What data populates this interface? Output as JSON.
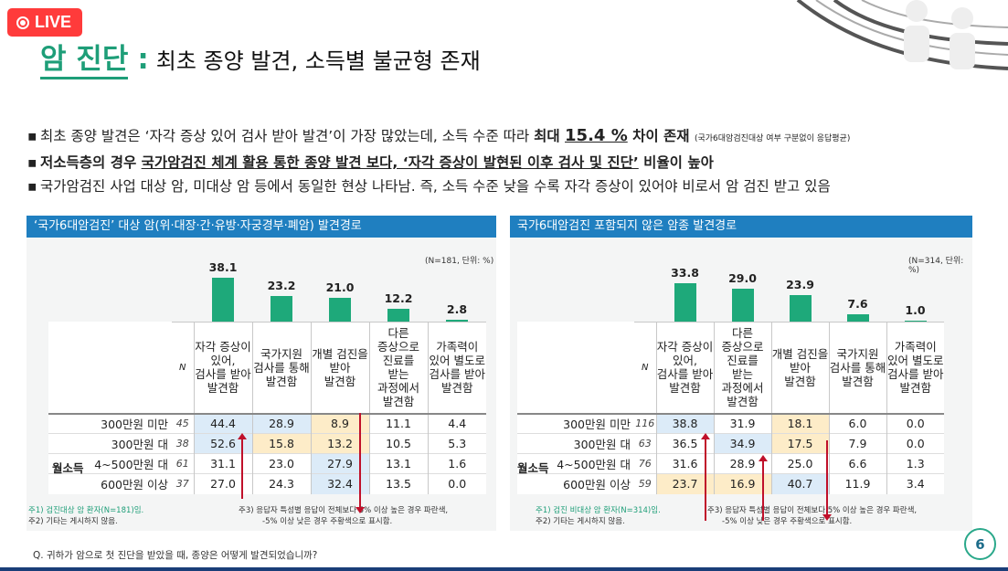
{
  "live_badge": "LIVE",
  "title": {
    "main": "암 진단",
    "colon": ":",
    "sub": "최초 종양 발견, 소득별 불균형 존재"
  },
  "bullets": {
    "b1_pre": "최초 종양 발견은 ‘자각 증상 있어 검사 받아 발견’이 가장 많았는데,  소득 수준 따라 ",
    "b1_bold": "최대 ",
    "b1_big": "15.4 %",
    "b1_bold2": " 차이 존재 ",
    "b1_small": "(국가6대암검진대상 여부 구분없이 응답평균)",
    "b2_bold": "저소득층의 경우 ",
    "b2_ul": "국가암검진 체계 활용 통한 종양 발견 보다, ‘자각 증상이 발현된 이후 검사 및 진단’",
    "b2_tail": " 비율이 높아",
    "b3": "국가암검진 사업 대상 암, 미대상 암 등에서 동일한 현상 나타남. 즉, 소득 수준 낮을 수록 자각 증상이 있어야 비로서 암 검진 받고 있음"
  },
  "left": {
    "header": "‘국가6대암검진’ 대상 암(위·대장·간·유방·자궁경부·폐암) 발견경로",
    "n_note": "(N=181, 단위: %)",
    "n_label": "N",
    "group_label": "월소득",
    "columns": [
      "자각 증상이 있어, 검사를 받아 발견함",
      "국가지원 검사를 통해 발견함",
      "개별 검진을 받아 발견함",
      "다른 증상으로 진료를 받는 과정에서 발견함",
      "가족력이 있어 별도로 검사를 받아 발견함"
    ],
    "col_lines": [
      [
        "자각 증상이",
        "있어,",
        "검사를 받아",
        "발견함"
      ],
      [
        "국가지원",
        "검사를 통해",
        "발견함"
      ],
      [
        "개별 검진을",
        "받아",
        "발견함"
      ],
      [
        "다른",
        "증상으로",
        "진료를",
        "받는",
        "과정에서",
        "발견함"
      ],
      [
        "가족력이",
        "있어 별도로",
        "검사를 받아",
        "발견함"
      ]
    ],
    "bar_values": [
      "38.1",
      "23.2",
      "21.0",
      "12.2",
      "2.8"
    ],
    "rows": [
      {
        "label": "300만원 미만",
        "n": "45",
        "cells": [
          "44.4",
          "28.9",
          "8.9",
          "11.1",
          "4.4"
        ]
      },
      {
        "label": "300만원 대",
        "n": "38",
        "cells": [
          "52.6",
          "15.8",
          "13.2",
          "10.5",
          "5.3"
        ]
      },
      {
        "label": "4~500만원 대",
        "n": "61",
        "cells": [
          "31.1",
          "23.0",
          "27.9",
          "13.1",
          "1.6"
        ]
      },
      {
        "label": "600만원 이상",
        "n": "37",
        "cells": [
          "27.0",
          "24.3",
          "32.4",
          "13.5",
          "0.0"
        ]
      }
    ],
    "foot1": "주1) 검진대상 암 환자(N=181)임.",
    "foot2": "주2) 기타는 게시하지 않음.",
    "foot3": "주3) 응답자 특성별 응답이 전체보다 5% 이상 높은 경우 파란색,",
    "foot4": "-5% 이상 낮은 경우 주황색으로 표시함."
  },
  "right": {
    "header": "국가6대암검진 포함되지 않은 암종 발견경로",
    "n_note": "(N=314, 단위: %)",
    "n_label": "N",
    "group_label": "월소득",
    "columns": [
      "자각 증상이 있어, 검사를 받아 발견함",
      "다른 증상으로 진료를 받는 과정에서 발견함",
      "개별 검진을 받아 발견함",
      "국가지원 검사를 통해 발견함",
      "가족력이 있어 별도로 검사를 받아 발견함"
    ],
    "col_lines": [
      [
        "자각 증상이",
        "있어,",
        "검사를 받아",
        "발견함"
      ],
      [
        "다른",
        "증상으로",
        "진료를",
        "받는",
        "과정에서",
        "발견함"
      ],
      [
        "개별 검진을",
        "받아",
        "발견함"
      ],
      [
        "국가지원",
        "검사를 통해",
        "발견함"
      ],
      [
        "가족력이",
        "있어 별도로",
        "검사를 받아",
        "발견함"
      ]
    ],
    "bar_values": [
      "33.8",
      "29.0",
      "23.9",
      "7.6",
      "1.0"
    ],
    "rows": [
      {
        "label": "300만원 미만",
        "n": "116",
        "cells": [
          "38.8",
          "31.9",
          "18.1",
          "6.0",
          "0.0"
        ]
      },
      {
        "label": "300만원 대",
        "n": "63",
        "cells": [
          "36.5",
          "34.9",
          "17.5",
          "7.9",
          "0.0"
        ]
      },
      {
        "label": "4~500만원 대",
        "n": "76",
        "cells": [
          "31.6",
          "28.9",
          "25.0",
          "6.6",
          "1.3"
        ]
      },
      {
        "label": "600만원 이상",
        "n": "59",
        "cells": [
          "23.7",
          "16.9",
          "40.7",
          "11.9",
          "3.4"
        ]
      }
    ],
    "foot1": "주1) 검진 비대상 암 환자(N=314)임.",
    "foot2": "주2) 기타는 게시하지 않음.",
    "foot3": "주3) 응답자 특성별 응답이 전체보다 5% 이상 높은 경우 파란색,",
    "foot4": "-5% 이상 낮은 경우 주황색으로 표시함."
  },
  "question": "Q. 귀하가 암으로 첫 진단을 받았을 때, 종양은 어떻게 발견되었습니까?",
  "page_number": "6",
  "colors": {
    "accent": "#1e9e78",
    "header_blue": "#1f7fc0",
    "bar_green": "#1ea97a",
    "highlight_blue": "#dcebf8",
    "highlight_orange": "#fdecc8",
    "arrow_red": "#c0102a"
  }
}
